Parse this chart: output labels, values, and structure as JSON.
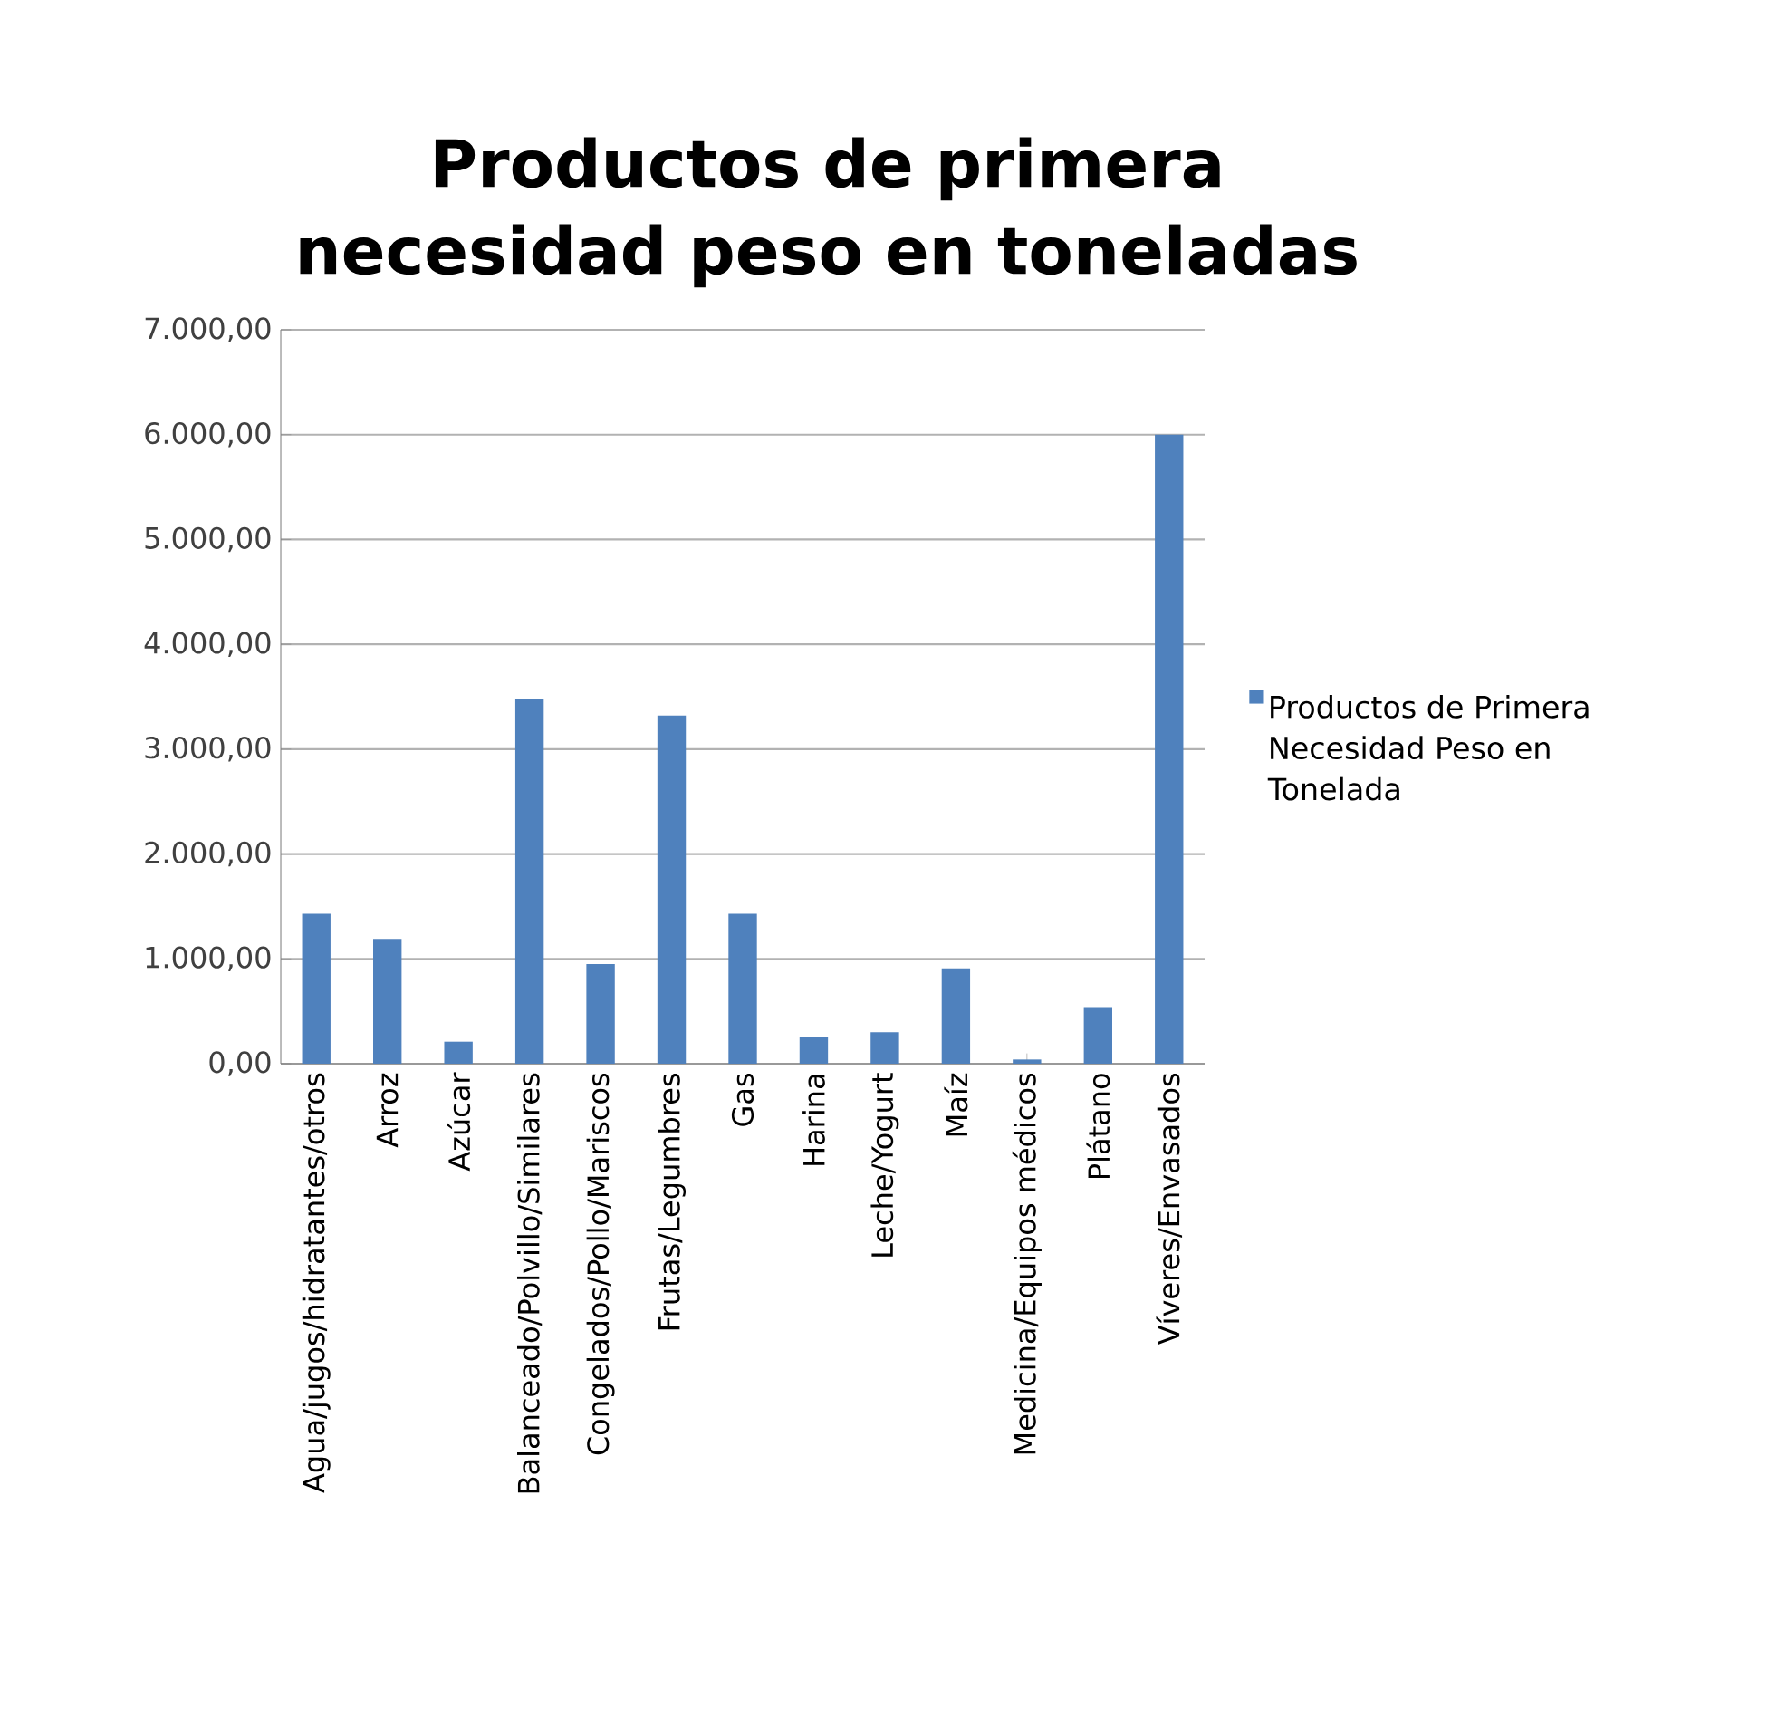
{
  "chart_data": {
    "type": "bar",
    "title": "Productos de primera necesidad peso en toneladas",
    "categories": [
      "Agua/jugos/hidratantes/otros",
      "Arroz",
      "Azúcar",
      "Balanceado/Polvillo/Similares",
      "Congelados/Pollo/Mariscos",
      "Frutas/Legumbres",
      "Gas",
      "Harina",
      "Leche/Yogurt",
      "Maíz",
      "Medicina/Equipos médicos",
      "Plátano",
      "Víveres/Envasados"
    ],
    "series": [
      {
        "name": "Productos de Primera Necesidad Peso en Tonelada",
        "color": "#4f81bd",
        "values": [
          1430,
          1190,
          210,
          3480,
          950,
          3320,
          1430,
          250,
          300,
          910,
          40,
          540,
          6000
        ]
      }
    ],
    "ylim": [
      0,
      7000
    ],
    "yticks": [
      {
        "value": 0,
        "label": "0,00"
      },
      {
        "value": 1000,
        "label": "1.000,00"
      },
      {
        "value": 2000,
        "label": "2.000,00"
      },
      {
        "value": 3000,
        "label": "3.000,00"
      },
      {
        "value": 4000,
        "label": "4.000,00"
      },
      {
        "value": 5000,
        "label": "5.000,00"
      },
      {
        "value": 6000,
        "label": "6.000,00"
      },
      {
        "value": 7000,
        "label": "7.000,00"
      }
    ],
    "grid": "y",
    "legend": "right"
  }
}
